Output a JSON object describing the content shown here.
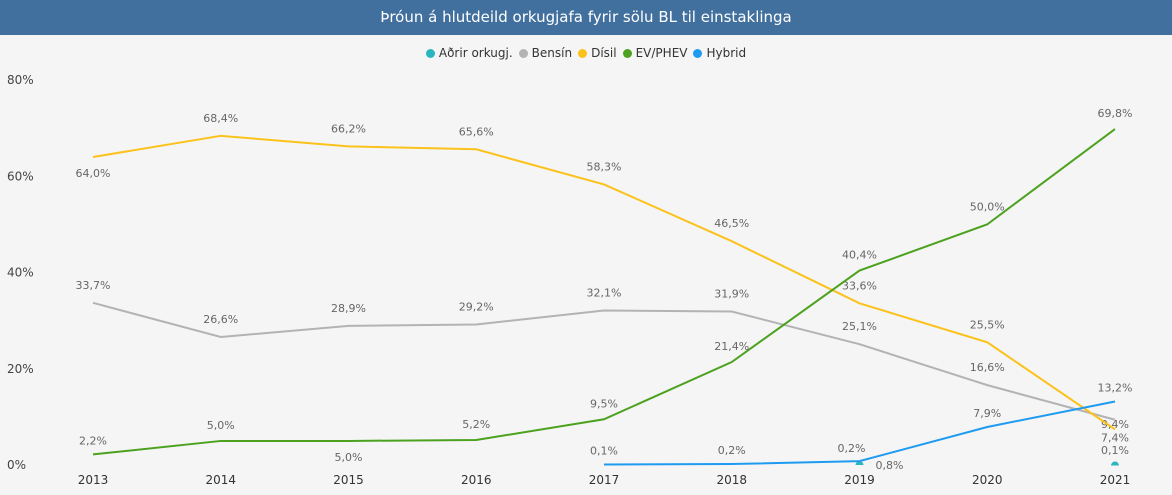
{
  "chart_data": {
    "type": "line",
    "title": "Þróun á hlutdeild orkugjafa fyrir sölu BL til einstaklinga",
    "x": [
      "2013",
      "2014",
      "2015",
      "2016",
      "2017",
      "2018",
      "2019",
      "2020",
      "2021"
    ],
    "ylim": [
      0,
      80
    ],
    "yticks": [
      "0%",
      "20%",
      "40%",
      "60%",
      "80%"
    ],
    "ytick_values": [
      0,
      20,
      40,
      60,
      80
    ],
    "legend_position": "top-center",
    "series": [
      {
        "name": "Aðrir orkugj.",
        "color": "#2bb5c0",
        "values": [
          null,
          null,
          null,
          null,
          null,
          null,
          0.2,
          null,
          0.1
        ],
        "labels": [
          null,
          null,
          null,
          null,
          null,
          null,
          "0,2%",
          null,
          "0,1%"
        ]
      },
      {
        "name": "Bensín",
        "color": "#b3b3b3",
        "values": [
          33.7,
          26.6,
          28.9,
          29.2,
          32.1,
          31.9,
          25.1,
          16.6,
          9.4
        ],
        "labels": [
          "33,7%",
          "26,6%",
          "28,9%",
          "29,2%",
          "32,1%",
          "31,9%",
          "25,1%",
          "16,6%",
          "9,4%"
        ]
      },
      {
        "name": "Dísil",
        "color": "#fbc21b",
        "values": [
          64.0,
          68.4,
          66.2,
          65.6,
          58.3,
          46.5,
          33.6,
          25.5,
          7.4
        ],
        "labels": [
          "64,0%",
          "68,4%",
          "66,2%",
          "65,6%",
          "58,3%",
          "46,5%",
          "33,6%",
          "25,5%",
          "7,4%"
        ]
      },
      {
        "name": "EV/PHEV",
        "color": "#4ca21f",
        "values": [
          2.2,
          5.0,
          5.0,
          5.2,
          9.5,
          21.4,
          40.4,
          50.0,
          69.8
        ],
        "labels": [
          "2,2%",
          "5,0%",
          "5,0%",
          "5,2%",
          "9,5%",
          "21,4%",
          "40,4%",
          "50,0%",
          "69,8%"
        ]
      },
      {
        "name": "Hybrid",
        "color": "#1e9bf0",
        "values": [
          null,
          null,
          null,
          null,
          0.1,
          0.2,
          0.8,
          7.9,
          13.2
        ],
        "labels": [
          null,
          null,
          null,
          null,
          "0,1%",
          "0,2%",
          "0,8%",
          "7,9%",
          "13,2%"
        ]
      }
    ]
  }
}
